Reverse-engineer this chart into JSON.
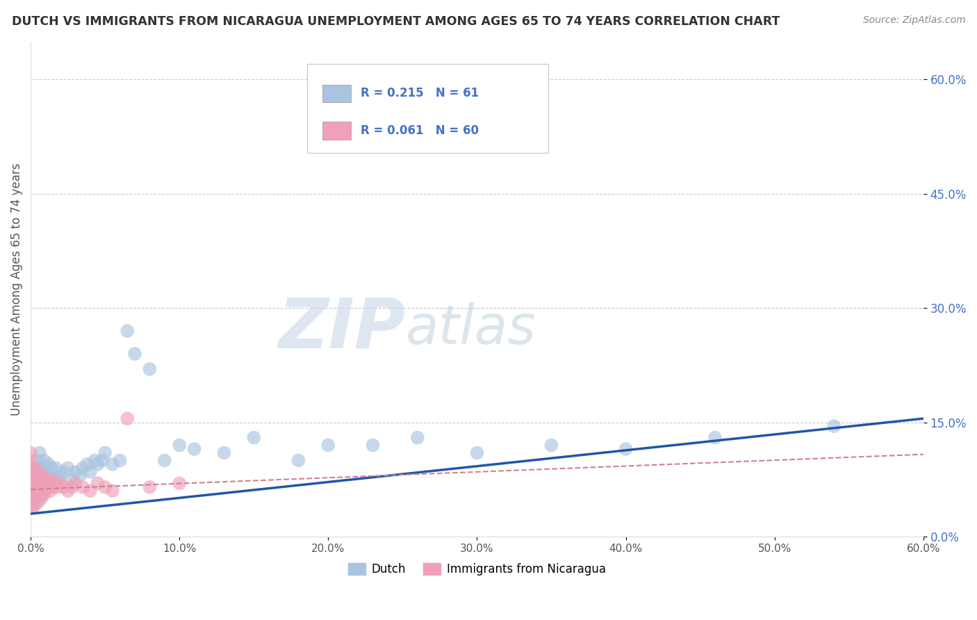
{
  "title": "DUTCH VS IMMIGRANTS FROM NICARAGUA UNEMPLOYMENT AMONG AGES 65 TO 74 YEARS CORRELATION CHART",
  "source": "Source: ZipAtlas.com",
  "ylabel": "Unemployment Among Ages 65 to 74 years",
  "xlim": [
    0.0,
    0.6
  ],
  "ylim": [
    0.0,
    0.65
  ],
  "yticks": [
    0.0,
    0.15,
    0.3,
    0.45,
    0.6
  ],
  "xticks": [
    0.0,
    0.1,
    0.2,
    0.3,
    0.4,
    0.5,
    0.6
  ],
  "dutch_color": "#a8c4e0",
  "nicaragua_color": "#f0a0b8",
  "dutch_line_color": "#2255aa",
  "nicaragua_line_color": "#d06080",
  "nicaragua_dash_color": "#d08090",
  "watermark_zip": "ZIP",
  "watermark_atlas": "atlas",
  "background_color": "#ffffff",
  "grid_color": "#c8c8c8",
  "dutch_scatter_x": [
    0.001,
    0.002,
    0.003,
    0.003,
    0.004,
    0.004,
    0.005,
    0.005,
    0.005,
    0.006,
    0.006,
    0.006,
    0.007,
    0.007,
    0.007,
    0.008,
    0.008,
    0.009,
    0.009,
    0.01,
    0.01,
    0.011,
    0.012,
    0.013,
    0.014,
    0.015,
    0.016,
    0.017,
    0.018,
    0.02,
    0.022,
    0.025,
    0.028,
    0.03,
    0.033,
    0.035,
    0.038,
    0.04,
    0.043,
    0.045,
    0.048,
    0.05,
    0.055,
    0.06,
    0.065,
    0.07,
    0.08,
    0.09,
    0.1,
    0.11,
    0.13,
    0.15,
    0.18,
    0.2,
    0.23,
    0.26,
    0.3,
    0.35,
    0.4,
    0.46,
    0.54
  ],
  "dutch_scatter_y": [
    0.05,
    0.04,
    0.08,
    0.06,
    0.07,
    0.09,
    0.05,
    0.07,
    0.1,
    0.06,
    0.08,
    0.11,
    0.05,
    0.07,
    0.09,
    0.06,
    0.08,
    0.07,
    0.1,
    0.065,
    0.085,
    0.075,
    0.095,
    0.07,
    0.09,
    0.08,
    0.07,
    0.09,
    0.075,
    0.08,
    0.085,
    0.09,
    0.075,
    0.085,
    0.08,
    0.09,
    0.095,
    0.085,
    0.1,
    0.095,
    0.1,
    0.11,
    0.095,
    0.1,
    0.27,
    0.24,
    0.22,
    0.1,
    0.12,
    0.115,
    0.11,
    0.13,
    0.1,
    0.12,
    0.12,
    0.13,
    0.11,
    0.12,
    0.115,
    0.13,
    0.145
  ],
  "nicaragua_scatter_x": [
    0.0,
    0.0,
    0.0,
    0.0,
    0.0,
    0.0,
    0.0,
    0.0,
    0.0,
    0.0,
    0.001,
    0.001,
    0.001,
    0.001,
    0.001,
    0.001,
    0.002,
    0.002,
    0.002,
    0.002,
    0.003,
    0.003,
    0.003,
    0.003,
    0.004,
    0.004,
    0.004,
    0.005,
    0.005,
    0.005,
    0.006,
    0.006,
    0.007,
    0.007,
    0.008,
    0.008,
    0.009,
    0.009,
    0.01,
    0.01,
    0.011,
    0.012,
    0.013,
    0.014,
    0.015,
    0.016,
    0.018,
    0.02,
    0.022,
    0.025,
    0.028,
    0.03,
    0.035,
    0.04,
    0.045,
    0.05,
    0.055,
    0.065,
    0.08,
    0.1
  ],
  "nicaragua_scatter_y": [
    0.05,
    0.07,
    0.09,
    0.11,
    0.06,
    0.08,
    0.1,
    0.04,
    0.06,
    0.08,
    0.05,
    0.07,
    0.09,
    0.045,
    0.065,
    0.085,
    0.055,
    0.075,
    0.04,
    0.06,
    0.05,
    0.07,
    0.09,
    0.045,
    0.06,
    0.08,
    0.05,
    0.065,
    0.085,
    0.045,
    0.06,
    0.08,
    0.055,
    0.075,
    0.06,
    0.08,
    0.055,
    0.07,
    0.06,
    0.075,
    0.065,
    0.07,
    0.06,
    0.075,
    0.065,
    0.07,
    0.065,
    0.07,
    0.065,
    0.06,
    0.065,
    0.07,
    0.065,
    0.06,
    0.07,
    0.065,
    0.06,
    0.155,
    0.065,
    0.07
  ],
  "dutch_trendline_x": [
    0.0,
    0.6
  ],
  "dutch_trendline_y": [
    0.03,
    0.155
  ],
  "nicaragua_trendline_x": [
    0.0,
    0.6
  ],
  "nicaragua_trendline_y": [
    0.062,
    0.108
  ]
}
